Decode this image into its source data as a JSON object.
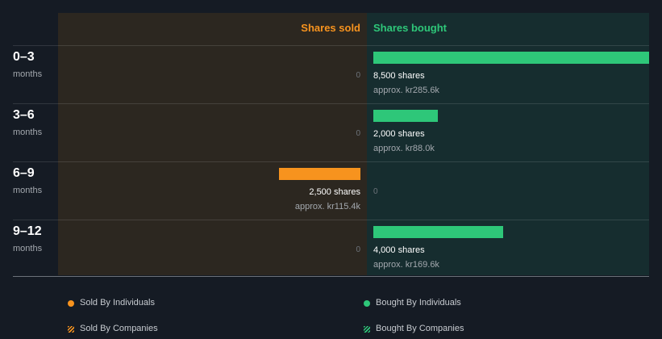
{
  "colors": {
    "sold": "#f7931e",
    "bought": "#2ec779",
    "sold_panel": "#2c2720",
    "bought_panel": "#162d2f",
    "background": "#151b24"
  },
  "chart_data": {
    "type": "bar",
    "orientation": "horizontal-diverging",
    "title": "",
    "categories": [
      {
        "period": "0–3",
        "unit": "months"
      },
      {
        "period": "3–6",
        "unit": "months"
      },
      {
        "period": "6–9",
        "unit": "months"
      },
      {
        "period": "9–12",
        "unit": "months"
      }
    ],
    "series": [
      {
        "name": "Shares sold",
        "values": [
          0,
          0,
          2500,
          0
        ],
        "shares_labels": [
          "0",
          "0",
          "2,500 shares",
          "0"
        ],
        "approx_labels": [
          "",
          "",
          "approx. kr115.4k",
          ""
        ]
      },
      {
        "name": "Shares bought",
        "values": [
          8500,
          2000,
          0,
          4000
        ],
        "shares_labels": [
          "8,500 shares",
          "2,000 shares",
          "0",
          "4,000 shares"
        ],
        "approx_labels": [
          "approx. kr285.6k",
          "approx. kr88.0k",
          "",
          "approx. kr169.6k"
        ]
      }
    ],
    "xlim": [
      0,
      8500
    ],
    "legend": {
      "placement": "bottom",
      "items": [
        {
          "label": "Sold By Individuals",
          "marker": "dot",
          "color": "#f7931e"
        },
        {
          "label": "Bought By Individuals",
          "marker": "dot",
          "color": "#2ec779"
        },
        {
          "label": "Sold By Companies",
          "marker": "hatch",
          "color": "#f7931e"
        },
        {
          "label": "Bought By Companies",
          "marker": "hatch",
          "color": "#2ec779"
        }
      ]
    }
  }
}
